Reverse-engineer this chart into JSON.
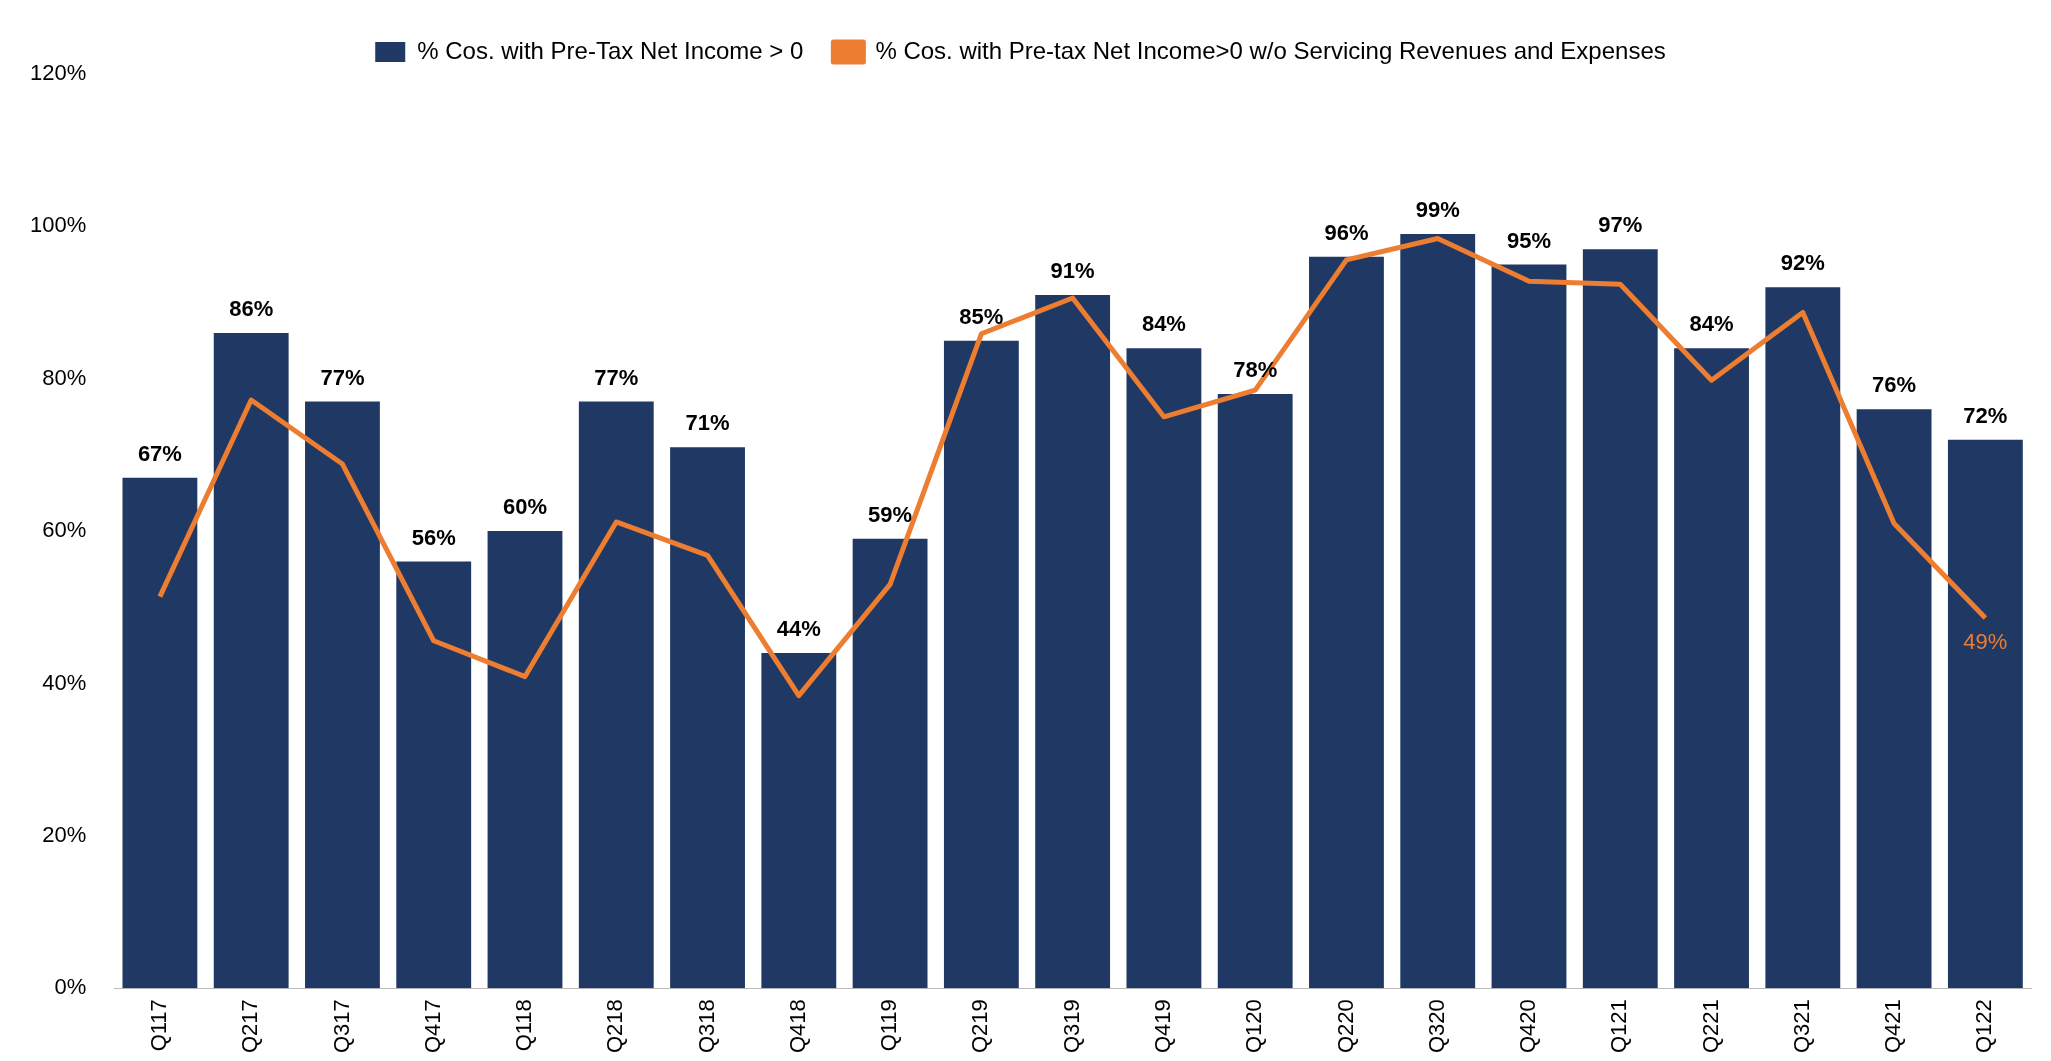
{
  "chart_data": {
    "type": "bar",
    "categories": [
      "Q117",
      "Q217",
      "Q317",
      "Q417",
      "Q118",
      "Q218",
      "Q318",
      "Q418",
      "Q119",
      "Q219",
      "Q319",
      "Q419",
      "Q120",
      "Q220",
      "Q320",
      "Q420",
      "Q121",
      "Q221",
      "Q321",
      "Q421",
      "Q122"
    ],
    "series": [
      {
        "name": "% Cos. with Pre-Tax Net Income > 0",
        "color": "#1f3864",
        "values": [
          67,
          86,
          77,
          56,
          60,
          77,
          71,
          44,
          59,
          85,
          91,
          84,
          78,
          96,
          99,
          95,
          97,
          84,
          92,
          76,
          72
        ],
        "value_labels": [
          "67%",
          "86%",
          "77%",
          "56%",
          "60%",
          "77%",
          "71%",
          "44%",
          "59%",
          "85%",
          "91%",
          "84%",
          "78%",
          "96%",
          "99%",
          "95%",
          "97%",
          "84%",
          "92%",
          "76%",
          "72%"
        ]
      },
      {
        "name": "% Cos. with Pre-tax Net Income>0 w/o Servicing Revenues and Expenses",
        "type": "line",
        "color": "#ed7d31",
        "values": [
          51.4,
          77.2,
          68.8,
          45.6,
          40.9,
          61.2,
          56.8,
          38.4,
          53,
          85.9,
          90.6,
          75,
          78.5,
          95.6,
          98.4,
          92.8,
          92.4,
          79.8,
          88.7,
          61,
          48.6
        ],
        "value_labels": [
          null,
          null,
          null,
          null,
          null,
          null,
          null,
          null,
          null,
          null,
          null,
          null,
          null,
          null,
          null,
          null,
          null,
          null,
          null,
          null,
          "49%"
        ],
        "marker": "none"
      }
    ],
    "ylim": [
      0,
      120
    ],
    "yticks": [
      {
        "value": 0,
        "label": "0%"
      },
      {
        "value": 20,
        "label": "20%"
      },
      {
        "value": 40,
        "label": "40%"
      },
      {
        "value": 60,
        "label": "60%"
      },
      {
        "value": 80,
        "label": "80%"
      },
      {
        "value": 100,
        "label": "100%"
      },
      {
        "value": 120,
        "label": "120%"
      }
    ],
    "grid": false,
    "legend": "top"
  }
}
